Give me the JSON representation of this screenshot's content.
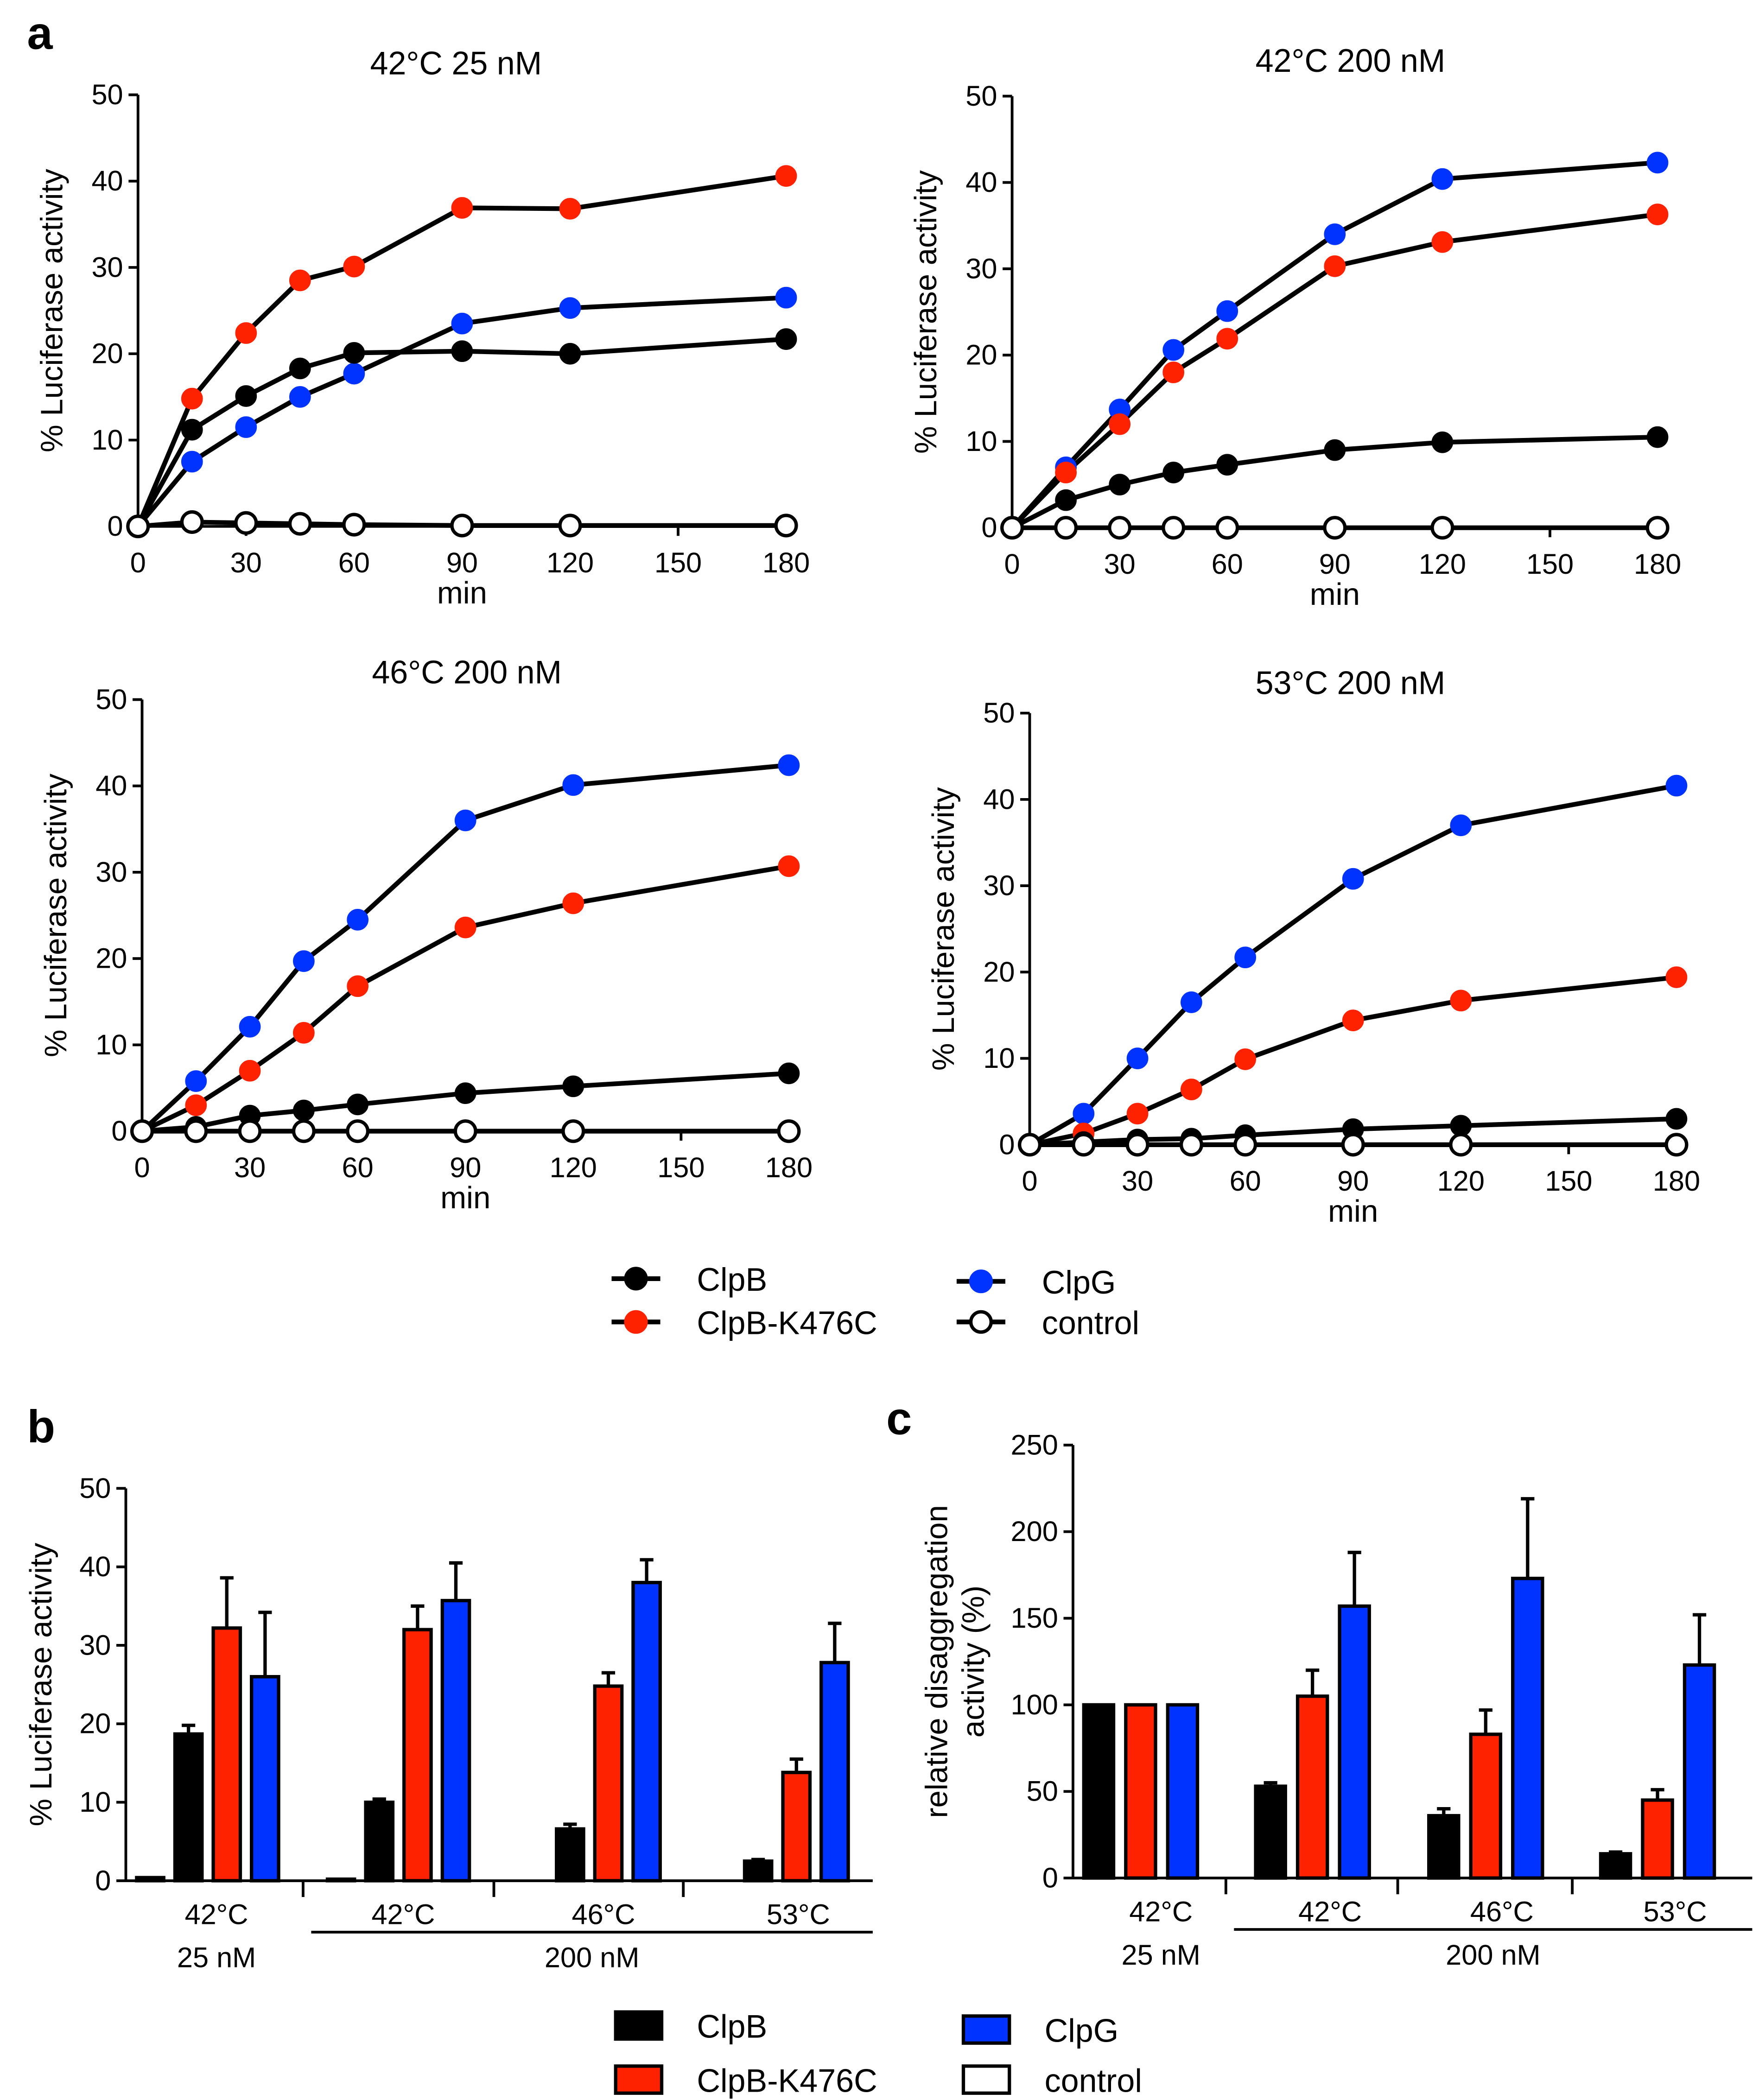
{
  "panel_letters": {
    "a": "a",
    "b": "b",
    "c": "c"
  },
  "colors": {
    "ClpB": "#000000",
    "ClpB-K476C": "#ff2200",
    "ClpG": "#0033ff",
    "control": "#ffffff"
  },
  "legend": [
    "ClpB",
    "ClpB-K476C",
    "ClpG",
    "control"
  ],
  "chart_data": [
    {
      "type": "line",
      "title": "42°C 25 nM",
      "xlabel": "min",
      "ylabel": "% Luciferase activity",
      "xlim": [
        0,
        180
      ],
      "ylim": [
        0,
        50
      ],
      "xticks": [
        0,
        30,
        60,
        90,
        120,
        150,
        180
      ],
      "yticks": [
        0,
        10,
        20,
        30,
        40,
        50
      ],
      "x": [
        0,
        15,
        30,
        45,
        60,
        90,
        120,
        180
      ],
      "series": [
        {
          "name": "ClpB",
          "values": [
            0,
            11.2,
            15.1,
            18.3,
            20.1,
            20.3,
            20.0,
            21.7
          ]
        },
        {
          "name": "ClpB-K476C",
          "values": [
            0,
            14.8,
            22.4,
            28.5,
            30.1,
            36.9,
            36.8,
            40.6
          ]
        },
        {
          "name": "ClpG",
          "values": [
            0,
            7.5,
            11.5,
            15.0,
            17.7,
            23.5,
            25.3,
            26.5
          ]
        },
        {
          "name": "control",
          "values": [
            0,
            0.5,
            0.4,
            0.3,
            0.2,
            0.1,
            0.1,
            0.1
          ]
        }
      ]
    },
    {
      "type": "line",
      "title": "42°C 200 nM",
      "xlabel": "min",
      "ylabel": "% Luciferase activity",
      "xlim": [
        0,
        180
      ],
      "ylim": [
        0,
        50
      ],
      "xticks": [
        0,
        30,
        60,
        90,
        120,
        150,
        180
      ],
      "yticks": [
        0,
        10,
        20,
        30,
        40,
        50
      ],
      "x": [
        0,
        15,
        30,
        45,
        60,
        90,
        120,
        180
      ],
      "series": [
        {
          "name": "ClpB",
          "values": [
            0,
            3.2,
            5.0,
            6.4,
            7.3,
            9.0,
            9.9,
            10.5
          ]
        },
        {
          "name": "ClpB-K476C",
          "values": [
            0,
            6.4,
            12.0,
            18.0,
            21.9,
            30.3,
            33.1,
            36.3
          ]
        },
        {
          "name": "ClpG",
          "values": [
            0,
            7.0,
            13.7,
            20.6,
            25.1,
            34.0,
            40.4,
            42.3
          ]
        },
        {
          "name": "control",
          "values": [
            0,
            0,
            0,
            0,
            0,
            0,
            0,
            0
          ]
        }
      ]
    },
    {
      "type": "line",
      "title": "46°C 200 nM",
      "xlabel": "min",
      "ylabel": "% Luciferase activity",
      "xlim": [
        0,
        180
      ],
      "ylim": [
        0,
        50
      ],
      "xticks": [
        0,
        30,
        60,
        90,
        120,
        150,
        180
      ],
      "yticks": [
        0,
        10,
        20,
        30,
        40,
        50
      ],
      "x": [
        0,
        15,
        30,
        45,
        60,
        90,
        120,
        180
      ],
      "series": [
        {
          "name": "ClpB",
          "values": [
            0,
            0.5,
            1.8,
            2.4,
            3.1,
            4.4,
            5.2,
            6.7
          ]
        },
        {
          "name": "ClpB-K476C",
          "values": [
            0,
            3.0,
            7.0,
            11.4,
            16.8,
            23.6,
            26.4,
            30.7
          ]
        },
        {
          "name": "ClpG",
          "values": [
            0,
            5.8,
            12.1,
            19.7,
            24.5,
            36.0,
            40.1,
            42.4
          ]
        },
        {
          "name": "control",
          "values": [
            0,
            0,
            0,
            0,
            0,
            0,
            0,
            0
          ]
        }
      ]
    },
    {
      "type": "line",
      "title": "53°C 200 nM",
      "xlabel": "min",
      "ylabel": "% Luciferase activity",
      "xlim": [
        0,
        180
      ],
      "ylim": [
        0,
        50
      ],
      "xticks": [
        0,
        30,
        60,
        90,
        120,
        150,
        180
      ],
      "yticks": [
        0,
        10,
        20,
        30,
        40,
        50
      ],
      "x": [
        0,
        15,
        30,
        45,
        60,
        90,
        120,
        180
      ],
      "series": [
        {
          "name": "ClpB",
          "values": [
            0,
            0.3,
            0.6,
            0.7,
            1.1,
            1.8,
            2.2,
            3.0
          ]
        },
        {
          "name": "ClpB-K476C",
          "values": [
            0,
            1.3,
            3.6,
            6.4,
            9.9,
            14.4,
            16.7,
            19.4
          ]
        },
        {
          "name": "ClpG",
          "values": [
            0,
            3.6,
            10.0,
            16.5,
            21.7,
            30.8,
            37.0,
            41.6
          ]
        },
        {
          "name": "control",
          "values": [
            0,
            0,
            0,
            0,
            0,
            0,
            0,
            0
          ]
        }
      ]
    },
    {
      "type": "bar",
      "ylabel": "% Luciferase activity",
      "ylim": [
        0,
        50
      ],
      "yticks": [
        0,
        10,
        20,
        30,
        40,
        50
      ],
      "categories": [
        "42°C",
        "42°C",
        "46°C",
        "53°C"
      ],
      "concentration_labels": [
        "25 nM",
        "200 nM"
      ],
      "series": [
        {
          "name": "control",
          "values": [
            0.4,
            0.2,
            0,
            0
          ],
          "errors": [
            0,
            0,
            0,
            0
          ]
        },
        {
          "name": "ClpB",
          "values": [
            18.7,
            10.0,
            6.6,
            2.5
          ],
          "errors": [
            1.1,
            0.4,
            0.6,
            0.2
          ]
        },
        {
          "name": "ClpB-K476C",
          "values": [
            32.2,
            32.0,
            24.8,
            13.8
          ],
          "errors": [
            6.4,
            3.0,
            1.7,
            1.7
          ]
        },
        {
          "name": "ClpG",
          "values": [
            26.0,
            35.7,
            38.0,
            27.8
          ],
          "errors": [
            8.2,
            4.8,
            2.9,
            5.0
          ]
        }
      ]
    },
    {
      "type": "bar",
      "ylabel": "relative disaggregation activity (%)",
      "ylim": [
        0,
        250
      ],
      "yticks": [
        0,
        50,
        100,
        150,
        200,
        250
      ],
      "categories": [
        "42°C",
        "42°C",
        "46°C",
        "53°C"
      ],
      "concentration_labels": [
        "25 nM",
        "200 nM"
      ],
      "series": [
        {
          "name": "ClpB",
          "values": [
            100,
            53,
            36,
            14
          ],
          "errors": [
            0,
            2,
            4,
            1
          ]
        },
        {
          "name": "ClpB-K476C",
          "values": [
            100,
            105,
            83,
            45
          ],
          "errors": [
            0,
            15,
            14,
            6
          ]
        },
        {
          "name": "ClpG",
          "values": [
            100,
            157,
            173,
            123
          ],
          "errors": [
            0,
            31,
            46,
            29
          ]
        }
      ]
    }
  ]
}
